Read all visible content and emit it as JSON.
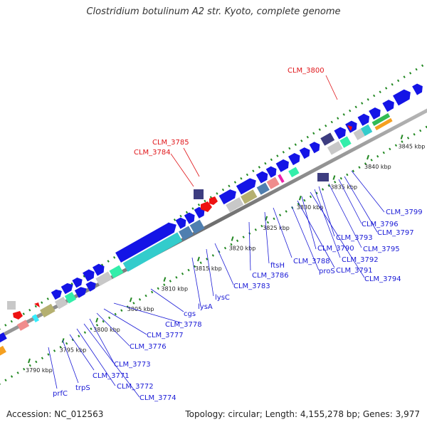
{
  "title": "Clostridium botulinum A2 str. Kyoto, complete genome",
  "footer": {
    "accession": "Accession: NC_012563",
    "info": "Topology: circular; Length: 4,155,278 bp; Genes: 3,977"
  },
  "ticks": [
    "3790 kbp",
    "3795 kbp",
    "3800 kbp",
    "3805 kbp",
    "3810 kbp",
    "3815 kbp",
    "3820 kbp",
    "3825 kbp",
    "3830 kbp",
    "3835 kbp",
    "3840 kbp",
    "3845 kbp"
  ],
  "gene_labels_blue": [
    "prfC",
    "trpS",
    "CLM_3771",
    "CLM_3772",
    "CLM_3774",
    "CLM_3773",
    "CLM_3776",
    "CLM_3777",
    "CLM_3778",
    "cgs",
    "lysA",
    "lysC",
    "CLM_3783",
    "CLM_3786",
    "ftsH",
    "CLM_3788",
    "proS",
    "CLM_3791",
    "CLM_3790",
    "CLM_3794",
    "CLM_3792",
    "CLM_3793",
    "CLM_3795",
    "CLM_3796",
    "CLM_3797",
    "CLM_3799"
  ],
  "gene_labels_red": [
    "CLM_3800",
    "CLM_3785",
    "CLM_3784"
  ],
  "colors": {
    "backbone": "#8a8a8a",
    "gene_blue": "#1414e6",
    "teal": "#33cccc",
    "steel": "#4f7fb0",
    "olive": "#b5b070",
    "salmon": "#f08c8c",
    "gray": "#c8c8c8",
    "mint": "#33eeaa",
    "navy": "#3d3d80",
    "red": "#ee1111",
    "orange": "#f5a020",
    "green": "#33bb55",
    "dot_green": "#228822",
    "magenta": "#ee22aa",
    "cyan": "#33eeff"
  }
}
